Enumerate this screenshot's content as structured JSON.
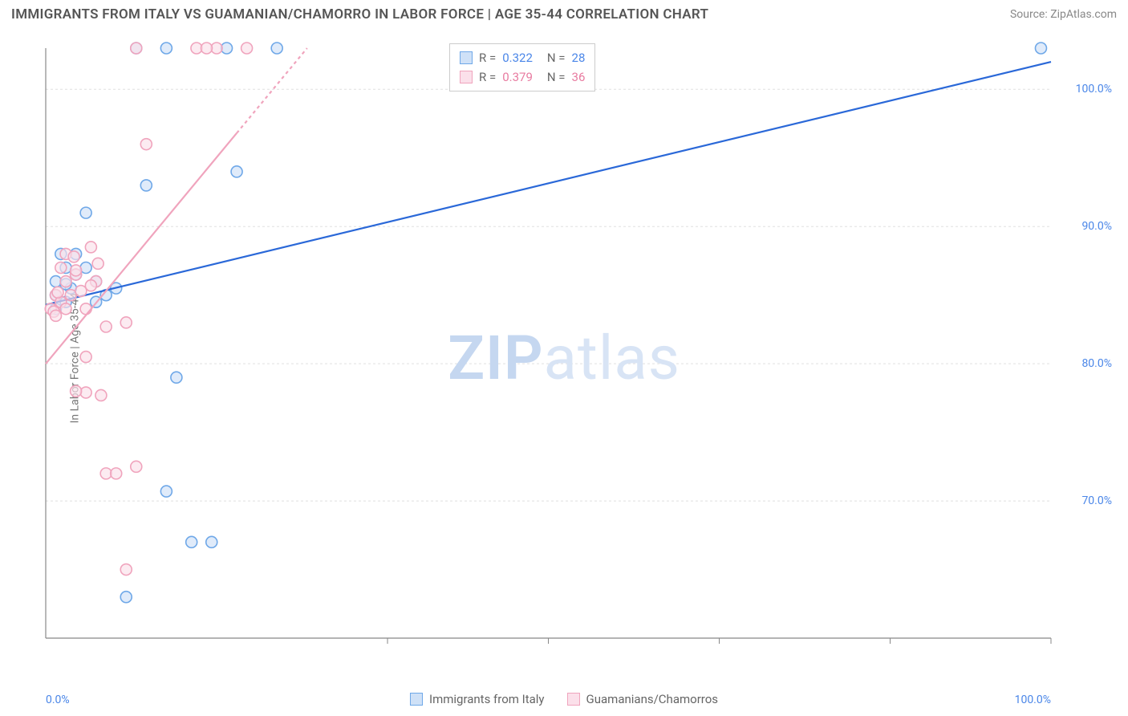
{
  "title": "IMMIGRANTS FROM ITALY VS GUAMANIAN/CHAMORRO IN LABOR FORCE | AGE 35-44 CORRELATION CHART",
  "source": "Source: ZipAtlas.com",
  "y_axis_label": "In Labor Force | Age 35-44",
  "watermark_zip": "ZIP",
  "watermark_atlas": "atlas",
  "chart": {
    "type": "scatter",
    "xlim": [
      0,
      100
    ],
    "ylim": [
      60,
      103
    ],
    "x_ticks": [
      0,
      100
    ],
    "x_tick_labels": [
      "0.0%",
      "100.0%"
    ],
    "y_ticks": [
      70,
      80,
      90,
      100
    ],
    "y_tick_labels": [
      "70.0%",
      "80.0%",
      "90.0%",
      "100.0%"
    ],
    "x_minor_ticks": [
      34,
      50,
      67,
      84
    ],
    "grid_color": "#e0e0e0",
    "axis_color": "#888888",
    "background_color": "#ffffff",
    "marker_radius": 7,
    "marker_stroke_width": 1.6,
    "fontsize_axis": 14,
    "fontsize_title": 17,
    "series": [
      {
        "name": "Immigrants from Italy",
        "color": "#6fa8e8",
        "fill": "#cfe1f7",
        "r_value": "0.322",
        "n_value": "28",
        "points": [
          [
            1,
            85
          ],
          [
            1,
            86
          ],
          [
            2,
            87
          ],
          [
            1.5,
            88
          ],
          [
            2,
            84.5
          ],
          [
            2.5,
            85.5
          ],
          [
            3,
            86.5
          ],
          [
            1,
            84
          ],
          [
            4,
            87
          ],
          [
            5,
            86
          ],
          [
            6,
            85
          ],
          [
            3,
            88
          ],
          [
            4,
            91
          ],
          [
            9,
            103
          ],
          [
            12,
            103
          ],
          [
            18,
            103
          ],
          [
            23,
            103
          ],
          [
            10,
            93
          ],
          [
            7,
            85.5
          ],
          [
            19,
            94
          ],
          [
            12,
            70.7
          ],
          [
            14.5,
            67
          ],
          [
            16.5,
            67
          ],
          [
            13,
            79
          ],
          [
            8,
            63
          ],
          [
            99,
            103
          ],
          [
            5,
            84.5
          ],
          [
            2,
            85.8
          ]
        ],
        "trend": {
          "x1": 0,
          "y1": 84.3,
          "x2": 100,
          "y2": 102,
          "stroke_width": 2.2
        }
      },
      {
        "name": "Guamanians/Chamorros",
        "color": "#f0a4bd",
        "fill": "#fbe0ea",
        "r_value": "0.379",
        "n_value": "36",
        "points": [
          [
            0.5,
            84
          ],
          [
            1,
            85
          ],
          [
            1.5,
            84.5
          ],
          [
            0.8,
            83.8
          ],
          [
            1.2,
            85.2
          ],
          [
            2,
            86
          ],
          [
            2.5,
            85
          ],
          [
            1.5,
            87
          ],
          [
            2,
            88
          ],
          [
            3,
            86.5
          ],
          [
            3.5,
            85.3
          ],
          [
            4,
            84
          ],
          [
            4.5,
            88.5
          ],
          [
            5,
            86
          ],
          [
            2,
            84
          ],
          [
            1,
            83.5
          ],
          [
            10,
            96
          ],
          [
            15,
            103
          ],
          [
            17,
            103
          ],
          [
            16,
            103
          ],
          [
            20,
            103
          ],
          [
            9,
            103
          ],
          [
            6,
            82.7
          ],
          [
            8,
            83
          ],
          [
            5.5,
            77.7
          ],
          [
            4,
            77.9
          ],
          [
            3,
            78
          ],
          [
            4,
            80.5
          ],
          [
            6,
            72
          ],
          [
            7,
            72
          ],
          [
            9,
            72.5
          ],
          [
            8,
            65
          ],
          [
            3,
            86.8
          ],
          [
            4.5,
            85.7
          ],
          [
            5.2,
            87.3
          ],
          [
            2.8,
            87.8
          ]
        ],
        "trend": {
          "x1": 0,
          "y1": 80,
          "x2": 26,
          "y2": 103,
          "stroke_width": 2.2,
          "dash_from_x": 19
        }
      }
    ]
  },
  "legend_top": {
    "rows": [
      {
        "swatch_border": "#6fa8e8",
        "swatch_fill": "#cfe1f7",
        "r_label": "R =",
        "r_val": "0.322",
        "n_label": "N =",
        "n_val": "28",
        "val_class": "val-blue"
      },
      {
        "swatch_border": "#f0a4bd",
        "swatch_fill": "#fbe0ea",
        "r_label": "R =",
        "r_val": "0.379",
        "n_label": "N =",
        "n_val": "36",
        "val_class": "val-pink"
      }
    ]
  },
  "legend_bottom": {
    "items": [
      {
        "swatch_border": "#6fa8e8",
        "swatch_fill": "#cfe1f7",
        "label": "Immigrants from Italy"
      },
      {
        "swatch_border": "#f0a4bd",
        "swatch_fill": "#fbe0ea",
        "label": "Guamanians/Chamorros"
      }
    ]
  }
}
